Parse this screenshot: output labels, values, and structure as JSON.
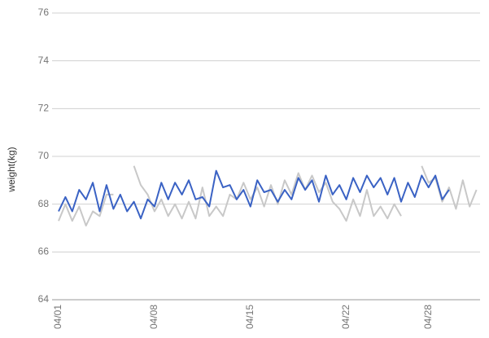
{
  "chart_data": {
    "type": "line",
    "y_label": "weight(kg)",
    "categories": [
      "04/01",
      null,
      null,
      null,
      null,
      null,
      null,
      null,
      null,
      null,
      null,
      null,
      null,
      null,
      "04/08",
      null,
      null,
      null,
      null,
      null,
      null,
      null,
      null,
      null,
      null,
      null,
      null,
      null,
      "04/15",
      null,
      null,
      null,
      null,
      null,
      null,
      null,
      null,
      null,
      null,
      null,
      null,
      null,
      "04/22",
      null,
      null,
      null,
      null,
      null,
      null,
      null,
      null,
      null,
      null,
      null,
      "04/28",
      null,
      null,
      null,
      null,
      null,
      null,
      null
    ],
    "series": [
      {
        "color": "#c8c8c8",
        "values": [
          67.3,
          68.0,
          67.3,
          67.9,
          67.1,
          67.7,
          67.5,
          68.4,
          68.4,
          null,
          null,
          69.6,
          68.8,
          68.4,
          67.7,
          68.2,
          67.5,
          68.0,
          67.4,
          68.1,
          67.4,
          68.7,
          67.5,
          67.9,
          67.5,
          68.4,
          68.2,
          68.9,
          68.2,
          68.7,
          67.9,
          68.8,
          68.0,
          69.0,
          68.4,
          69.3,
          68.6,
          69.2,
          68.5,
          68.9,
          68.1,
          67.8,
          67.3,
          68.2,
          67.5,
          68.6,
          67.5,
          67.9,
          67.4,
          68.0,
          67.5,
          null,
          null,
          69.6,
          68.9,
          69.1,
          68.1,
          68.7,
          67.8,
          69.0,
          67.9,
          68.6
        ]
      },
      {
        "color": "#3a62c4",
        "values": [
          67.7,
          68.3,
          67.7,
          68.6,
          68.2,
          68.9,
          67.7,
          68.8,
          67.8,
          68.4,
          67.7,
          68.1,
          67.4,
          68.2,
          67.9,
          68.9,
          68.2,
          68.9,
          68.4,
          69.0,
          68.2,
          68.3,
          67.9,
          69.4,
          68.7,
          68.8,
          68.2,
          68.6,
          67.9,
          69.0,
          68.5,
          68.6,
          68.1,
          68.6,
          68.2,
          69.1,
          68.6,
          69.0,
          68.1,
          69.2,
          68.4,
          68.8,
          68.2,
          69.1,
          68.5,
          69.2,
          68.7,
          69.1,
          68.4,
          69.1,
          68.1,
          68.9,
          68.3,
          69.2,
          68.7,
          69.2,
          68.2,
          68.6,
          null,
          null,
          null,
          null
        ]
      }
    ],
    "ylim": [
      64,
      76
    ],
    "yticks": [
      64,
      66,
      68,
      70,
      72,
      74,
      76
    ],
    "grid": true
  }
}
